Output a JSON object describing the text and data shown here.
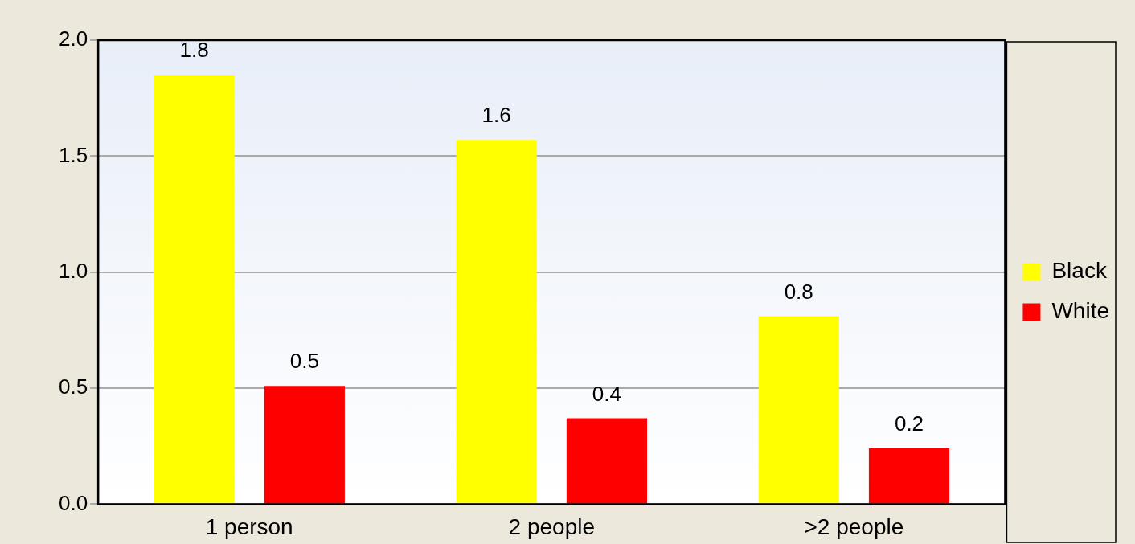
{
  "chart_data": {
    "type": "bar",
    "categories": [
      "1 person",
      "2 people",
      ">2 people"
    ],
    "series": [
      {
        "name": "Black",
        "color": "#ffff00",
        "values": [
          1.85,
          1.57,
          0.81
        ],
        "value_labels": [
          "1.8",
          "1.6",
          "0.8"
        ]
      },
      {
        "name": "White",
        "color": "#ff0000",
        "values": [
          0.51,
          0.37,
          0.24
        ],
        "value_labels": [
          "0.5",
          "0.4",
          "0.2"
        ]
      }
    ],
    "ylim": [
      0,
      2
    ],
    "yticks": [
      {
        "value": 0,
        "label": "0.0"
      },
      {
        "value": 0.5,
        "label": "0.5"
      },
      {
        "value": 1,
        "label": "1.0"
      },
      {
        "value": 1.5,
        "label": "1.5"
      },
      {
        "value": 2,
        "label": "2.0"
      }
    ],
    "grid": "y",
    "legend": "right"
  }
}
